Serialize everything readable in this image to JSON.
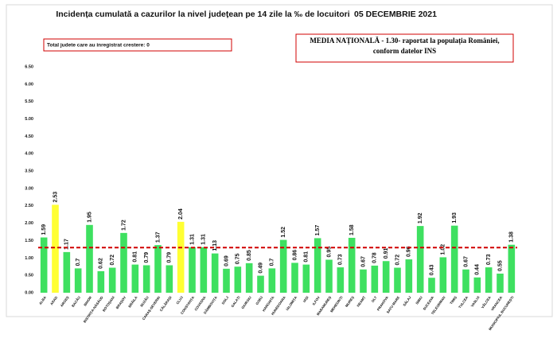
{
  "chart_data": {
    "type": "bar",
    "title": "Incidența cumulată a cazurilor la nivel județean pe 14 zile la ‰ de locuitori",
    "date": "05 DECEMBRIE 2021",
    "note": "Total judete care au inregistrat crestere: 0",
    "reference_text": "MEDIA NAȚIONALĂ - 1.30-  raportat la populația României, conform datelor INS",
    "reference_line": 1.3,
    "reference_color": "#d00000",
    "categories": [
      "ALBA",
      "ARAD",
      "ARGEȘ",
      "BACĂU",
      "BIHOR",
      "BISTRIȚA-NĂSĂUD",
      "BOTOȘANI",
      "BRAȘOV",
      "BRĂILA",
      "BUZĂU",
      "CARAȘ-SEVERIN",
      "CĂLĂRAȘI",
      "CLUJ",
      "CONSTANȚA",
      "COVASNA",
      "DÂMBOVIȚA",
      "DOLJ",
      "GALAȚI",
      "GIURGIU",
      "GORJ",
      "HARGHITA",
      "HUNEDOARA",
      "IALOMIȚA",
      "IAȘI",
      "ILFOV",
      "MARAMUREȘ",
      "MEHEDINȚI",
      "MUREȘ",
      "NEAMȚ",
      "OLT",
      "PRAHOVA",
      "SATU MARE",
      "SĂLAJ",
      "SIBIU",
      "SUCEAVA",
      "TELEORMAN",
      "TIMIȘ",
      "TULCEA",
      "VASLUI",
      "VÂLCEA",
      "VRANCEA",
      "MUNICIPIUL BUCUREȘTI"
    ],
    "values": [
      1.59,
      2.53,
      1.17,
      0.7,
      1.95,
      0.62,
      0.72,
      1.72,
      0.81,
      0.79,
      1.37,
      0.79,
      2.04,
      1.31,
      1.31,
      1.13,
      0.69,
      0.75,
      0.85,
      0.49,
      0.7,
      1.52,
      0.86,
      0.81,
      1.57,
      0.95,
      0.73,
      1.58,
      0.67,
      0.78,
      0.91,
      0.72,
      0.96,
      1.92,
      0.43,
      1.02,
      1.93,
      0.67,
      0.44,
      0.73,
      0.55,
      1.38
    ],
    "colors": [
      "#3ee060",
      "#ffff33",
      "#3ee060",
      "#3ee060",
      "#3ee060",
      "#3ee060",
      "#3ee060",
      "#3ee060",
      "#3ee060",
      "#3ee060",
      "#3ee060",
      "#3ee060",
      "#ffff33",
      "#3ee060",
      "#3ee060",
      "#3ee060",
      "#3ee060",
      "#3ee060",
      "#3ee060",
      "#3ee060",
      "#3ee060",
      "#3ee060",
      "#3ee060",
      "#3ee060",
      "#3ee060",
      "#3ee060",
      "#3ee060",
      "#3ee060",
      "#3ee060",
      "#3ee060",
      "#3ee060",
      "#3ee060",
      "#3ee060",
      "#3ee060",
      "#3ee060",
      "#3ee060",
      "#3ee060",
      "#3ee060",
      "#3ee060",
      "#3ee060",
      "#3ee060",
      "#3ee060"
    ],
    "ylim": [
      0,
      6.5
    ],
    "yticks": [
      {
        "value": 0,
        "label": "0.00"
      },
      {
        "value": 0.5,
        "label": "0.50"
      },
      {
        "value": 1,
        "label": "1.00"
      },
      {
        "value": 1.5,
        "label": "1.50"
      },
      {
        "value": 2,
        "label": "2.00"
      },
      {
        "value": 2.5,
        "label": "2.50"
      },
      {
        "value": 3,
        "label": "3.00"
      },
      {
        "value": 3.5,
        "label": "3.50"
      },
      {
        "value": 4,
        "label": "4.00"
      },
      {
        "value": 4.5,
        "label": "4.50"
      },
      {
        "value": 5,
        "label": "5.00"
      },
      {
        "value": 5.5,
        "label": "5.50"
      },
      {
        "value": 6,
        "label": "6.00"
      },
      {
        "value": 6.5,
        "label": "6.50"
      }
    ]
  }
}
